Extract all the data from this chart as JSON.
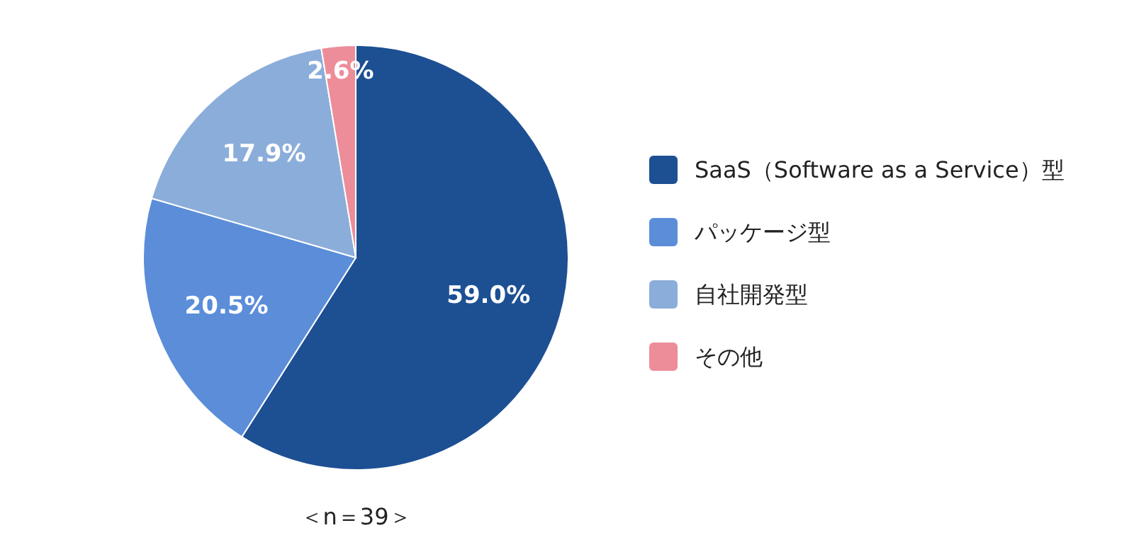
{
  "chart_data": {
    "type": "pie",
    "categories": [
      "SaaS（Software as a Service）型",
      "パッケージ型",
      "自社開発型",
      "その他"
    ],
    "values": [
      59.0,
      20.5,
      17.9,
      2.6
    ],
    "value_labels": [
      "59.0%",
      "20.5%",
      "17.9%",
      "2.6%"
    ],
    "colors": [
      "#1d4f93",
      "#5b8dd9",
      "#8badda",
      "#ec8d99"
    ],
    "legend": "right",
    "annotations": [
      "＜n＝39＞"
    ]
  }
}
